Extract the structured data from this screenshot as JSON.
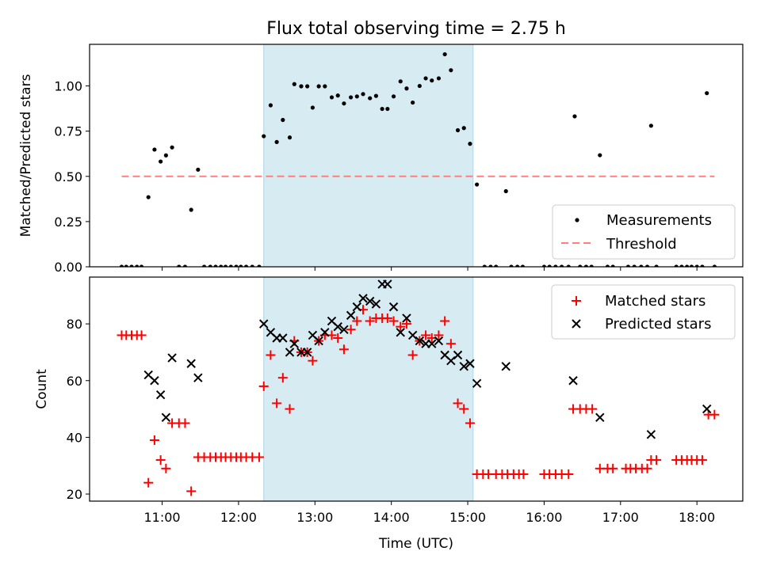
{
  "chart_data": [
    {
      "type": "scatter",
      "title": "Flux total observing time = 2.75 h",
      "ylabel": "Matched/Predicted stars",
      "xlabel": "",
      "x_axis": "time (UTC), values in hours",
      "xlim": [
        10.05,
        18.6
      ],
      "ylim": [
        0.0,
        1.23
      ],
      "yticks": [
        0.0,
        0.25,
        0.5,
        0.75,
        1.0
      ],
      "ytick_labels": [
        "0.00",
        "0.25",
        "0.50",
        "0.75",
        "1.00"
      ],
      "xticks": [
        11,
        12,
        13,
        14,
        15,
        16,
        17,
        18
      ],
      "xtick_labels": [
        "11:00",
        "12:00",
        "13:00",
        "14:00",
        "15:00",
        "16:00",
        "17:00",
        "18:00"
      ],
      "shaded_span": {
        "x": [
          12.33,
          15.07
        ],
        "color": "#add8e6"
      },
      "legend": {
        "placement": "bottom-right",
        "entries": [
          "Measurements",
          "Threshold"
        ]
      },
      "series": [
        {
          "name": "Measurements",
          "marker": "dot",
          "color": "#000000",
          "points": [
            [
              10.47,
              0
            ],
            [
              10.53,
              0
            ],
            [
              10.6,
              0
            ],
            [
              10.67,
              0
            ],
            [
              10.73,
              0
            ],
            [
              10.82,
              0.385
            ],
            [
              10.9,
              0.648
            ],
            [
              10.98,
              0.582
            ],
            [
              11.05,
              0.616
            ],
            [
              11.13,
              0.66
            ],
            [
              11.22,
              0
            ],
            [
              11.3,
              0
            ],
            [
              11.38,
              0.315
            ],
            [
              11.47,
              0.537
            ],
            [
              11.55,
              0
            ],
            [
              11.63,
              0
            ],
            [
              11.7,
              0
            ],
            [
              11.77,
              0
            ],
            [
              11.83,
              0
            ],
            [
              11.9,
              0
            ],
            [
              11.97,
              0
            ],
            [
              12.03,
              0
            ],
            [
              12.1,
              0
            ],
            [
              12.18,
              0
            ],
            [
              12.27,
              0
            ],
            [
              12.33,
              0.722
            ],
            [
              12.42,
              0.893
            ],
            [
              12.5,
              0.69
            ],
            [
              12.58,
              0.812
            ],
            [
              12.67,
              0.715
            ],
            [
              12.73,
              1.01
            ],
            [
              12.82,
              0.998
            ],
            [
              12.9,
              0.998
            ],
            [
              12.97,
              0.88
            ],
            [
              13.05,
              0.998
            ],
            [
              13.13,
              0.998
            ],
            [
              13.22,
              0.937
            ],
            [
              13.3,
              0.947
            ],
            [
              13.38,
              0.903
            ],
            [
              13.47,
              0.937
            ],
            [
              13.55,
              0.942
            ],
            [
              13.63,
              0.955
            ],
            [
              13.72,
              0.932
            ],
            [
              13.8,
              0.945
            ],
            [
              13.88,
              0.873
            ],
            [
              13.95,
              0.873
            ],
            [
              14.03,
              0.942
            ],
            [
              14.12,
              1.025
            ],
            [
              14.2,
              0.986
            ],
            [
              14.28,
              0.908
            ],
            [
              14.37,
              1.0
            ],
            [
              14.45,
              1.042
            ],
            [
              14.53,
              1.03
            ],
            [
              14.62,
              1.042
            ],
            [
              14.7,
              1.175
            ],
            [
              14.78,
              1.087
            ],
            [
              14.87,
              0.755
            ],
            [
              14.95,
              0.767
            ],
            [
              15.03,
              0.68
            ],
            [
              15.12,
              0.455
            ],
            [
              15.22,
              0
            ],
            [
              15.3,
              0
            ],
            [
              15.37,
              0
            ],
            [
              15.5,
              0.418
            ],
            [
              15.57,
              0
            ],
            [
              15.65,
              0
            ],
            [
              15.72,
              0
            ],
            [
              16.0,
              0
            ],
            [
              16.07,
              0
            ],
            [
              16.15,
              0
            ],
            [
              16.23,
              0
            ],
            [
              16.32,
              0
            ],
            [
              16.4,
              0.832
            ],
            [
              16.47,
              0
            ],
            [
              16.55,
              0
            ],
            [
              16.62,
              0
            ],
            [
              16.73,
              0.617
            ],
            [
              16.83,
              0
            ],
            [
              16.9,
              0
            ],
            [
              17.1,
              0
            ],
            [
              17.18,
              0
            ],
            [
              17.27,
              0
            ],
            [
              17.35,
              0
            ],
            [
              17.4,
              0.78
            ],
            [
              17.47,
              0
            ],
            [
              17.73,
              0
            ],
            [
              17.8,
              0
            ],
            [
              17.87,
              0
            ],
            [
              17.93,
              0
            ],
            [
              18.0,
              0
            ],
            [
              18.07,
              0
            ],
            [
              18.13,
              0.96
            ],
            [
              18.23,
              0
            ]
          ]
        },
        {
          "name": "Threshold",
          "marker": "dashed-line",
          "color": "#ff7f7f",
          "x": [
            10.47,
            18.23
          ],
          "y": [
            0.5,
            0.5
          ]
        }
      ]
    },
    {
      "type": "scatter",
      "title": "",
      "ylabel": "Count",
      "xlabel": "Time (UTC)",
      "x_axis": "time (UTC), values in hours",
      "xlim": [
        10.05,
        18.6
      ],
      "ylim": [
        17.5,
        96.5
      ],
      "yticks": [
        20,
        40,
        60,
        80
      ],
      "ytick_labels": [
        "20",
        "40",
        "60",
        "80"
      ],
      "xticks": [
        11,
        12,
        13,
        14,
        15,
        16,
        17,
        18
      ],
      "xtick_labels": [
        "11:00",
        "12:00",
        "13:00",
        "14:00",
        "15:00",
        "16:00",
        "17:00",
        "18:00"
      ],
      "shaded_span": {
        "x": [
          12.33,
          15.07
        ],
        "color": "#add8e6"
      },
      "legend": {
        "placement": "top-right",
        "entries": [
          "Matched stars",
          "Predicted stars"
        ]
      },
      "series": [
        {
          "name": "Matched stars",
          "marker": "plus",
          "color": "#ff0000",
          "points": [
            [
              10.47,
              76
            ],
            [
              10.53,
              76
            ],
            [
              10.6,
              76
            ],
            [
              10.67,
              76
            ],
            [
              10.73,
              76
            ],
            [
              10.82,
              24
            ],
            [
              10.9,
              39
            ],
            [
              10.98,
              32
            ],
            [
              11.05,
              29
            ],
            [
              11.13,
              45
            ],
            [
              11.22,
              45
            ],
            [
              11.3,
              45
            ],
            [
              11.38,
              21
            ],
            [
              11.47,
              33
            ],
            [
              11.55,
              33
            ],
            [
              11.63,
              33
            ],
            [
              11.7,
              33
            ],
            [
              11.77,
              33
            ],
            [
              11.83,
              33
            ],
            [
              11.9,
              33
            ],
            [
              11.97,
              33
            ],
            [
              12.03,
              33
            ],
            [
              12.1,
              33
            ],
            [
              12.18,
              33
            ],
            [
              12.27,
              33
            ],
            [
              12.33,
              58
            ],
            [
              12.42,
              69
            ],
            [
              12.5,
              52
            ],
            [
              12.58,
              61
            ],
            [
              12.67,
              50
            ],
            [
              12.73,
              74
            ],
            [
              12.82,
              70
            ],
            [
              12.9,
              70
            ],
            [
              12.97,
              67
            ],
            [
              13.05,
              74
            ],
            [
              13.13,
              76
            ],
            [
              13.22,
              76
            ],
            [
              13.3,
              75
            ],
            [
              13.38,
              71
            ],
            [
              13.47,
              78
            ],
            [
              13.55,
              81
            ],
            [
              13.63,
              85
            ],
            [
              13.72,
              81
            ],
            [
              13.8,
              82
            ],
            [
              13.88,
              82
            ],
            [
              13.95,
              82
            ],
            [
              14.03,
              81
            ],
            [
              14.12,
              79
            ],
            [
              14.2,
              80
            ],
            [
              14.28,
              69
            ],
            [
              14.37,
              74
            ],
            [
              14.45,
              76
            ],
            [
              14.53,
              75
            ],
            [
              14.62,
              76
            ],
            [
              14.7,
              81
            ],
            [
              14.78,
              73
            ],
            [
              14.87,
              52
            ],
            [
              14.95,
              50
            ],
            [
              15.03,
              45
            ],
            [
              15.12,
              27
            ],
            [
              15.2,
              27
            ],
            [
              15.27,
              27
            ],
            [
              15.37,
              27
            ],
            [
              15.45,
              27
            ],
            [
              15.52,
              27
            ],
            [
              15.6,
              27
            ],
            [
              15.67,
              27
            ],
            [
              15.73,
              27
            ],
            [
              16.0,
              27
            ],
            [
              16.07,
              27
            ],
            [
              16.15,
              27
            ],
            [
              16.23,
              27
            ],
            [
              16.32,
              27
            ],
            [
              16.38,
              50
            ],
            [
              16.47,
              50
            ],
            [
              16.55,
              50
            ],
            [
              16.63,
              50
            ],
            [
              16.73,
              29
            ],
            [
              16.83,
              29
            ],
            [
              16.9,
              29
            ],
            [
              17.07,
              29
            ],
            [
              17.13,
              29
            ],
            [
              17.2,
              29
            ],
            [
              17.28,
              29
            ],
            [
              17.35,
              29
            ],
            [
              17.4,
              32
            ],
            [
              17.47,
              32
            ],
            [
              17.73,
              32
            ],
            [
              17.8,
              32
            ],
            [
              17.87,
              32
            ],
            [
              17.93,
              32
            ],
            [
              18.0,
              32
            ],
            [
              18.07,
              32
            ],
            [
              18.15,
              48
            ],
            [
              18.23,
              48
            ]
          ]
        },
        {
          "name": "Predicted stars",
          "marker": "x",
          "color": "#000000",
          "points": [
            [
              10.82,
              62
            ],
            [
              10.9,
              60
            ],
            [
              10.98,
              55
            ],
            [
              11.05,
              47
            ],
            [
              11.13,
              68
            ],
            [
              11.38,
              66
            ],
            [
              11.47,
              61
            ],
            [
              12.33,
              80
            ],
            [
              12.42,
              77
            ],
            [
              12.5,
              75
            ],
            [
              12.58,
              75
            ],
            [
              12.67,
              70
            ],
            [
              12.73,
              73
            ],
            [
              12.82,
              70
            ],
            [
              12.9,
              70
            ],
            [
              12.97,
              76
            ],
            [
              13.05,
              74
            ],
            [
              13.13,
              77
            ],
            [
              13.22,
              81
            ],
            [
              13.3,
              79
            ],
            [
              13.38,
              78
            ],
            [
              13.47,
              83
            ],
            [
              13.55,
              86
            ],
            [
              13.63,
              89
            ],
            [
              13.72,
              88
            ],
            [
              13.8,
              87
            ],
            [
              13.88,
              94
            ],
            [
              13.95,
              94
            ],
            [
              14.03,
              86
            ],
            [
              14.12,
              77
            ],
            [
              14.2,
              82
            ],
            [
              14.28,
              76
            ],
            [
              14.37,
              74
            ],
            [
              14.45,
              73
            ],
            [
              14.53,
              73
            ],
            [
              14.62,
              74
            ],
            [
              14.7,
              69
            ],
            [
              14.78,
              67
            ],
            [
              14.87,
              69
            ],
            [
              14.95,
              65
            ],
            [
              15.03,
              66
            ],
            [
              15.12,
              59
            ],
            [
              15.5,
              65
            ],
            [
              16.38,
              60
            ],
            [
              16.73,
              47
            ],
            [
              17.4,
              41
            ],
            [
              18.13,
              50
            ]
          ]
        }
      ]
    }
  ]
}
